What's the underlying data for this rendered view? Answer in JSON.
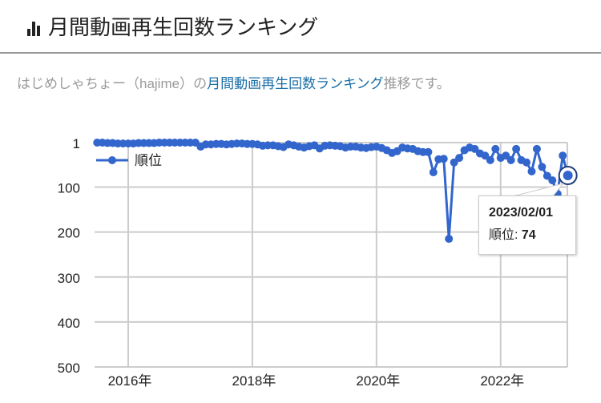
{
  "header": {
    "title": "月間動画再生回数ランキング",
    "icon": "bar-chart-icon"
  },
  "subtitle": {
    "prefix": "はじめしゃちょー（hajime）の",
    "link": "月間動画再生回数ランキング",
    "suffix": "推移です。"
  },
  "colors": {
    "series": "#3366cc",
    "link": "#1a6fa8",
    "grid": "#cccccc"
  },
  "tooltip": {
    "date": "2023/02/01",
    "label": "順位: ",
    "value": "74"
  },
  "chart_data": {
    "type": "line",
    "title": "月間動画再生回数ランキング",
    "legend": {
      "label": "順位",
      "position": "top-left"
    },
    "yaxis": {
      "reversed": true,
      "ylim": [
        1,
        500
      ],
      "ticks": [
        "1",
        "100",
        "200",
        "300",
        "400",
        "500"
      ],
      "tick_values": [
        1,
        100,
        200,
        300,
        400,
        500
      ]
    },
    "xaxis": {
      "ticks": [
        "2016年",
        "2018年",
        "2020年",
        "2022年"
      ],
      "tick_values": [
        "2016-01",
        "2018-01",
        "2020-01",
        "2022-01"
      ]
    },
    "start": "2015-07",
    "series": [
      {
        "name": "順位",
        "values": [
          1,
          1,
          2,
          2,
          3,
          3,
          3,
          3,
          2,
          2,
          2,
          2,
          1,
          1,
          1,
          1,
          1,
          1,
          1,
          1,
          10,
          5,
          5,
          4,
          4,
          5,
          4,
          3,
          3,
          4,
          4,
          5,
          8,
          7,
          7,
          9,
          11,
          5,
          7,
          10,
          12,
          9,
          7,
          14,
          8,
          7,
          8,
          9,
          12,
          10,
          10,
          12,
          13,
          11,
          10,
          13,
          18,
          24,
          20,
          12,
          14,
          15,
          20,
          22,
          22,
          67,
          38,
          37,
          215,
          45,
          35,
          18,
          12,
          15,
          25,
          30,
          40,
          15,
          35,
          30,
          40,
          15,
          40,
          45,
          65,
          15,
          55,
          75,
          85,
          115,
          30,
          74
        ]
      }
    ],
    "highlight": {
      "date": "2023-02",
      "value": 74
    }
  }
}
